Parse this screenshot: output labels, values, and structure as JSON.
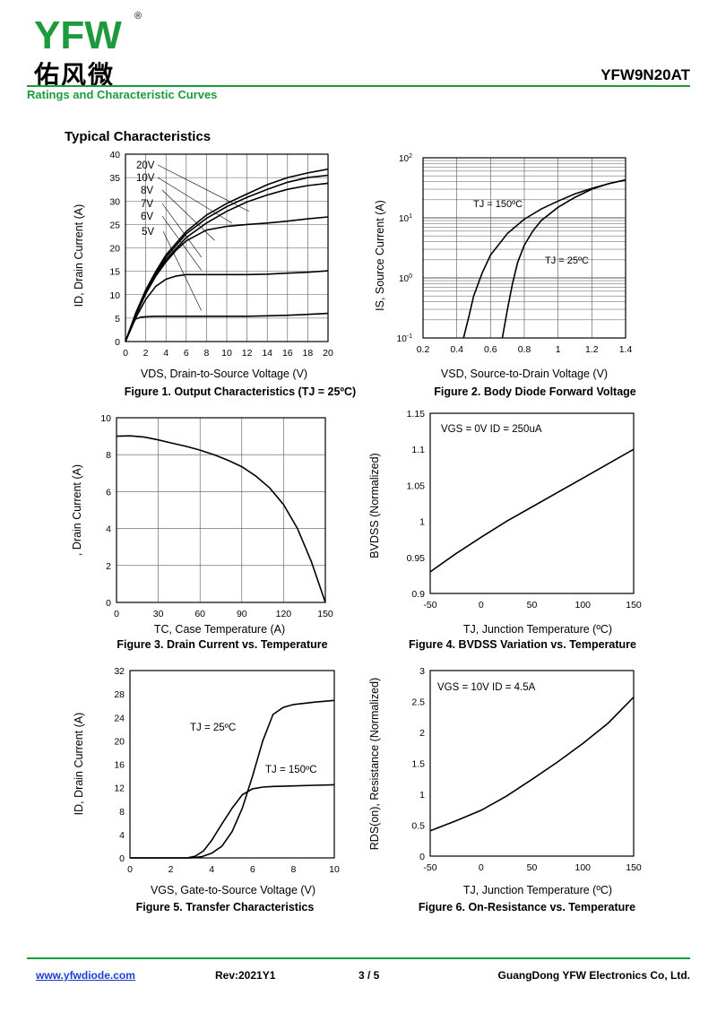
{
  "header": {
    "logo_text": "YFW",
    "logo_cn": "佑风微",
    "registered": "®",
    "part_number": "YFW9N20AT",
    "subtitle": "Ratings and Characteristic Curves",
    "section_title": "Typical Characteristics"
  },
  "footer": {
    "website": "www.yfwdiode.com",
    "revision": "Rev:2021Y1",
    "page": "3 / 5",
    "company": "GuangDong YFW Electronics Co, Ltd."
  },
  "colors": {
    "accent": "#1d9a3d",
    "link": "#1a3fd0"
  },
  "chart_data": [
    {
      "id": "fig1",
      "type": "line",
      "caption": "Figure 1. Output Characteristics (TJ = 25ºC)",
      "xlabel": "VDS, Drain-to-Source Voltage (V)",
      "ylabel": "ID, Drain Current (A)",
      "xlim": [
        0,
        20
      ],
      "ylim": [
        0,
        40
      ],
      "xticks": [
        0,
        2,
        4,
        6,
        8,
        10,
        12,
        14,
        16,
        18,
        20
      ],
      "yticks": [
        0,
        5,
        10,
        15,
        20,
        25,
        30,
        35,
        40
      ],
      "grid": true,
      "legend": [
        "20V",
        "10V",
        "8V",
        "7V",
        "6V",
        "5V"
      ],
      "series": [
        {
          "name": "20V",
          "x": [
            0,
            1,
            2,
            3,
            4,
            6,
            8,
            10,
            12,
            14,
            16,
            18,
            20
          ],
          "y": [
            0,
            6,
            11,
            15,
            18.5,
            23.5,
            27,
            29.5,
            31.5,
            33.5,
            35,
            36,
            36.8
          ]
        },
        {
          "name": "10V",
          "x": [
            0,
            1,
            2,
            3,
            4,
            6,
            8,
            10,
            12,
            14,
            16,
            18,
            20
          ],
          "y": [
            0,
            5.8,
            10.8,
            14.7,
            18,
            23,
            26.3,
            28.8,
            30.8,
            32.5,
            34,
            35,
            35.5
          ]
        },
        {
          "name": "8V",
          "x": [
            0,
            1,
            2,
            3,
            4,
            6,
            8,
            10,
            12,
            14,
            16,
            18,
            20
          ],
          "y": [
            0,
            5.6,
            10.5,
            14.3,
            17.5,
            22.2,
            25.3,
            27.8,
            29.8,
            31.3,
            32.5,
            33.3,
            33.8
          ]
        },
        {
          "name": "7V",
          "x": [
            0,
            1,
            2,
            3,
            4,
            5,
            6,
            8,
            10,
            12,
            14,
            16,
            18,
            20
          ],
          "y": [
            0,
            5.5,
            10.2,
            14,
            17,
            19.5,
            21.5,
            23.8,
            24.6,
            25,
            25.3,
            25.7,
            26.2,
            26.6
          ]
        },
        {
          "name": "6V",
          "x": [
            0,
            1,
            2,
            3,
            4,
            5,
            6,
            7,
            8,
            10,
            12,
            14,
            16,
            18,
            20
          ],
          "y": [
            0,
            5,
            9,
            11.8,
            13.3,
            14,
            14.3,
            14.3,
            14.3,
            14.3,
            14.3,
            14.4,
            14.6,
            14.8,
            15.1
          ]
        },
        {
          "name": "5V",
          "x": [
            0,
            0.5,
            1,
            1.5,
            2,
            3,
            4,
            6,
            8,
            10,
            12,
            14,
            16,
            18,
            20
          ],
          "y": [
            0,
            3,
            4.8,
            5.2,
            5.3,
            5.4,
            5.4,
            5.4,
            5.4,
            5.4,
            5.4,
            5.5,
            5.6,
            5.8,
            6
          ]
        }
      ]
    },
    {
      "id": "fig2",
      "type": "line",
      "caption": "Figure 2. Body Diode Forward Voltage",
      "xlabel": "VSD, Source-to-Drain Voltage (V)",
      "ylabel": "IS, Source Current (A)",
      "xlim": [
        0.2,
        1.4
      ],
      "ylim": [
        0.1,
        100
      ],
      "yscale": "log",
      "xticks": [
        0.2,
        0.4,
        0.6,
        0.8,
        1,
        1.2,
        1.4
      ],
      "yticks": [
        "10-1",
        "100",
        "101",
        "102"
      ],
      "grid": true,
      "series": [
        {
          "name": "TJ = 150ºC",
          "x": [
            0.44,
            0.47,
            0.5,
            0.55,
            0.6,
            0.7,
            0.8,
            0.9,
            1.0,
            1.1,
            1.2,
            1.3,
            1.4
          ],
          "y": [
            0.1,
            0.22,
            0.5,
            1.2,
            2.4,
            5.5,
            9.5,
            14,
            19,
            25,
            31,
            37,
            43
          ]
        },
        {
          "name": "TJ = 25ºC",
          "x": [
            0.67,
            0.7,
            0.73,
            0.76,
            0.8,
            0.85,
            0.9,
            1.0,
            1.1,
            1.2,
            1.3,
            1.4
          ],
          "y": [
            0.1,
            0.3,
            0.8,
            1.8,
            3.5,
            6,
            9,
            15,
            22,
            30,
            37,
            43
          ]
        }
      ]
    },
    {
      "id": "fig3",
      "type": "line",
      "caption": "Figure 3. Drain Current vs. Temperature",
      "xlabel": "TC, Case Temperature (A)",
      "ylabel": ", Drain Current (A)",
      "xlim": [
        0,
        150
      ],
      "ylim": [
        0,
        10
      ],
      "xticks": [
        0,
        30,
        60,
        90,
        120,
        150
      ],
      "yticks": [
        0,
        2,
        4,
        6,
        8,
        10
      ],
      "grid": true,
      "series": [
        {
          "x": [
            0,
            10,
            20,
            30,
            40,
            50,
            60,
            70,
            80,
            90,
            100,
            110,
            120,
            130,
            140,
            145,
            150
          ],
          "y": [
            9.0,
            9.02,
            8.95,
            8.8,
            8.62,
            8.45,
            8.25,
            8.0,
            7.7,
            7.35,
            6.85,
            6.2,
            5.3,
            4.0,
            2.2,
            1.1,
            0
          ]
        }
      ]
    },
    {
      "id": "fig4",
      "type": "line",
      "caption": "Figure 4. BVDSS Variation vs. Temperature",
      "xlabel": "TJ, Junction Temperature (ºC)",
      "ylabel": "BVDSS (Normalized)",
      "annotation": "VGS = 0V ID = 250uA",
      "xlim": [
        -50,
        150
      ],
      "ylim": [
        0.9,
        1.15
      ],
      "xticks": [
        -50,
        0,
        50,
        100,
        150
      ],
      "yticks": [
        0.9,
        0.95,
        1,
        1.05,
        1.1,
        1.15
      ],
      "grid": false,
      "series": [
        {
          "x": [
            -50,
            -25,
            0,
            25,
            50,
            75,
            100,
            125,
            150
          ],
          "y": [
            0.93,
            0.955,
            0.978,
            1.0,
            1.02,
            1.04,
            1.06,
            1.08,
            1.1
          ]
        }
      ]
    },
    {
      "id": "fig5",
      "type": "line",
      "caption": "Figure 5. Transfer Characteristics",
      "xlabel": "VGS, Gate-to-Source Voltage (V)",
      "ylabel": "ID, Drain Current (A)",
      "xlim": [
        0,
        10
      ],
      "ylim": [
        0,
        32
      ],
      "xticks": [
        0,
        2,
        4,
        6,
        8,
        10
      ],
      "yticks": [
        0,
        4,
        8,
        12,
        16,
        20,
        24,
        28,
        32
      ],
      "grid": false,
      "series": [
        {
          "name": "TJ = 25ºC",
          "x": [
            0,
            3.0,
            3.5,
            4.0,
            4.5,
            5.0,
            5.5,
            6.0,
            6.5,
            7.0,
            7.5,
            8.0,
            9.0,
            10.0
          ],
          "y": [
            0,
            0,
            0.2,
            0.8,
            2,
            4.5,
            8.5,
            14,
            20,
            24.5,
            25.7,
            26.2,
            26.6,
            26.9
          ]
        },
        {
          "name": "TJ = 150ºC",
          "x": [
            0,
            2.8,
            3.2,
            3.6,
            4.0,
            4.5,
            5.0,
            5.5,
            6.0,
            6.5,
            7.0,
            8.0,
            9.0,
            10.0
          ],
          "y": [
            0,
            0,
            0.3,
            1.2,
            3,
            5.8,
            8.5,
            10.8,
            11.8,
            12.1,
            12.2,
            12.3,
            12.4,
            12.5
          ]
        }
      ]
    },
    {
      "id": "fig6",
      "type": "line",
      "caption": "Figure 6. On-Resistance vs. Temperature",
      "xlabel": "TJ, Junction Temperature (ºC)",
      "ylabel": "RDS(on), Resistance (Normalized)",
      "annotation": "VGS = 10V ID = 4.5A",
      "xlim": [
        -50,
        150
      ],
      "ylim": [
        0,
        3
      ],
      "xticks": [
        -50,
        0,
        50,
        100,
        150
      ],
      "yticks": [
        0,
        0.5,
        1,
        1.5,
        2,
        2.5,
        3
      ],
      "grid": false,
      "series": [
        {
          "x": [
            -50,
            -25,
            0,
            25,
            50,
            75,
            100,
            125,
            150
          ],
          "y": [
            0.41,
            0.57,
            0.74,
            0.97,
            1.24,
            1.52,
            1.82,
            2.15,
            2.57
          ]
        }
      ]
    }
  ]
}
